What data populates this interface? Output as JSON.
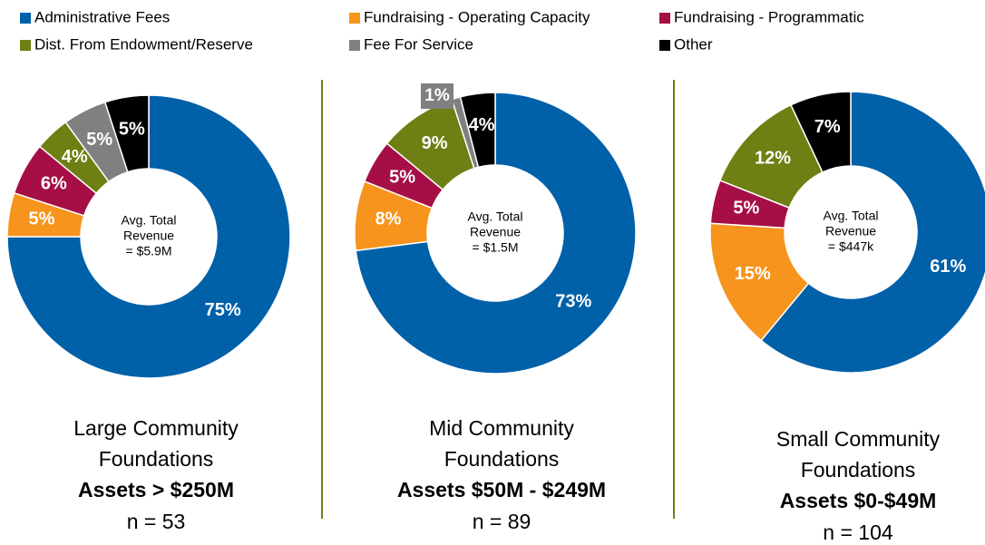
{
  "chart_data": [
    {
      "type": "pie",
      "donut": true,
      "categories": [
        "Administrative Fees",
        "Fundraising - Operating Capacity",
        "Fundraising - Programmatic",
        "Dist. From Endowment/Reserve",
        "Fee For Service",
        "Other"
      ],
      "colors": [
        "#0060a8",
        "#f7941d",
        "#a50f46",
        "#6e7f13",
        "#808080",
        "#000000"
      ],
      "values": [
        75,
        5,
        6,
        4,
        5,
        5
      ],
      "value_labels": [
        "75%",
        "5%",
        "6%",
        "4%",
        "5%",
        "5%"
      ],
      "center_label": [
        "Avg. Total",
        "Revenue",
        "= $5.9M"
      ],
      "title": [
        "Large Community",
        "Foundations"
      ],
      "subtitle": "Assets > $250M",
      "note": "n = 53"
    },
    {
      "type": "pie",
      "donut": true,
      "categories": [
        "Administrative Fees",
        "Fundraising - Operating Capacity",
        "Fundraising - Programmatic",
        "Dist. From Endowment/Reserve",
        "Fee For Service",
        "Other"
      ],
      "colors": [
        "#0060a8",
        "#f7941d",
        "#a50f46",
        "#6e7f13",
        "#808080",
        "#000000"
      ],
      "values": [
        73,
        8,
        5,
        9,
        1,
        4
      ],
      "value_labels": [
        "73%",
        "8%",
        "5%",
        "9%",
        "1%",
        "4%"
      ],
      "center_label": [
        "Avg. Total",
        "Revenue",
        "= $1.5M"
      ],
      "title": [
        "Mid Community",
        "Foundations"
      ],
      "subtitle": "Assets $50M - $249M",
      "note": "n = 89"
    },
    {
      "type": "pie",
      "donut": true,
      "categories": [
        "Administrative Fees",
        "Fundraising - Operating Capacity",
        "Fundraising - Programmatic",
        "Dist. From Endowment/Reserve",
        "Fee For Service",
        "Other"
      ],
      "colors": [
        "#0060a8",
        "#f7941d",
        "#a50f46",
        "#6e7f13",
        "#808080",
        "#000000"
      ],
      "values": [
        61,
        15,
        5,
        12,
        0,
        7
      ],
      "value_labels": [
        "61%",
        "15%",
        "5%",
        "12%",
        null,
        "7%"
      ],
      "center_label": [
        "Avg. Total",
        "Revenue",
        "= $447k"
      ],
      "title": [
        "Small Community",
        "Foundations"
      ],
      "subtitle": "Assets $0-$49M",
      "note": "n = 104"
    }
  ]
}
